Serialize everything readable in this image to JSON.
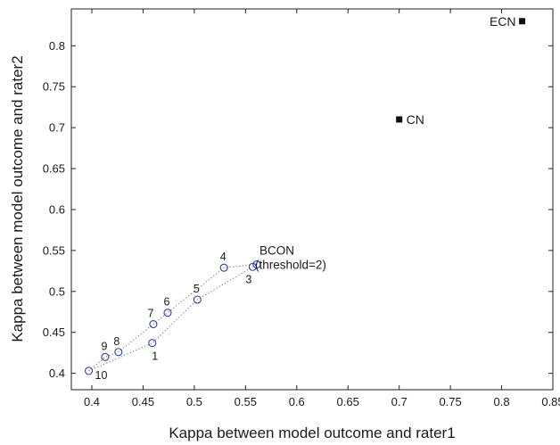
{
  "chart_data": {
    "type": "scatter",
    "xlabel": "Kappa between model outcome and rater1",
    "ylabel": "Kappa between model outcome and rater2",
    "xlim": [
      0.38,
      0.85
    ],
    "ylim": [
      0.38,
      0.845
    ],
    "xticks": [
      "0.4",
      "0.45",
      "0.5",
      "0.55",
      "0.6",
      "0.65",
      "0.7",
      "0.75",
      "0.8",
      "0.85"
    ],
    "yticks": [
      "0.4",
      "0.45",
      "0.5",
      "0.55",
      "0.6",
      "0.65",
      "0.7",
      "0.75",
      "0.8"
    ],
    "grid": false,
    "colors": {
      "circle": "#2b3fa8",
      "square": "#111111",
      "line": "#6a6a8a"
    },
    "numbered_points": [
      {
        "label": "1",
        "x": 0.459,
        "y": 0.437
      },
      {
        "label": "7",
        "x": 0.46,
        "y": 0.46
      },
      {
        "label": "6",
        "x": 0.474,
        "y": 0.474
      },
      {
        "label": "5",
        "x": 0.503,
        "y": 0.49
      },
      {
        "label": "4",
        "x": 0.529,
        "y": 0.529
      },
      {
        "label": "3",
        "x": 0.557,
        "y": 0.53
      },
      {
        "label": "8",
        "x": 0.426,
        "y": 0.426
      },
      {
        "label": "9",
        "x": 0.413,
        "y": 0.42
      },
      {
        "label": "10",
        "x": 0.397,
        "y": 0.403
      }
    ],
    "bcon_point": {
      "x": 0.561,
      "y": 0.533
    },
    "bcon_label": {
      "line1": "BCON",
      "line2": "(threshold=2)"
    },
    "upper_path": [
      "10",
      "9",
      "8",
      "7",
      "6",
      "4",
      "BCON"
    ],
    "lower_path": [
      "10",
      "1",
      "5",
      "3",
      "BCON"
    ],
    "square_points": [
      {
        "label": "CN",
        "x": 0.7,
        "y": 0.71
      },
      {
        "label": "ECN",
        "x": 0.82,
        "y": 0.83
      }
    ]
  }
}
